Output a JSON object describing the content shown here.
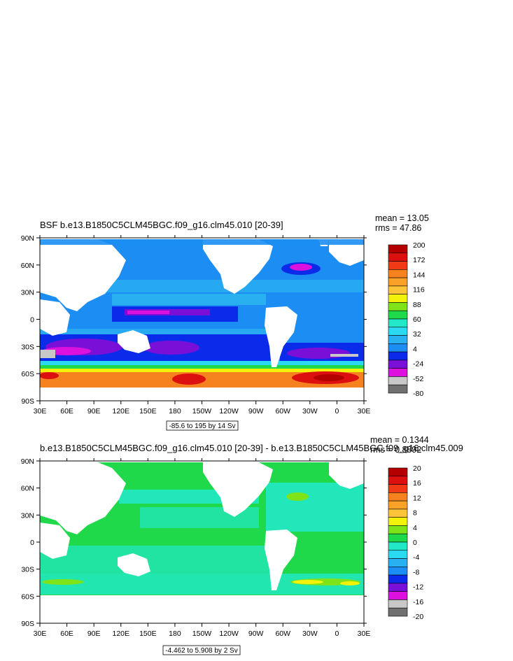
{
  "chart_data": [
    {
      "type": "heatmap",
      "title": "BSF b.e13.B1850C5CLM45BGC.f09_g16.clm45.010 [20-39]",
      "mean_text": "mean = 13.05",
      "rms_text": "rms = 47.86",
      "range_text": "-85.6 to 195 by 14 Sv",
      "x_ticks": [
        "30E",
        "60E",
        "90E",
        "120E",
        "150E",
        "180",
        "150W",
        "120W",
        "90W",
        "60W",
        "30W",
        "0",
        "30E"
      ],
      "y_ticks": [
        "90N",
        "60N",
        "30N",
        "0",
        "30S",
        "60S",
        "90S"
      ],
      "colorbar_labels": [
        "200",
        "172",
        "144",
        "116",
        "88",
        "60",
        "32",
        "4",
        "-24",
        "-52",
        "-80"
      ],
      "colorbar_colors": [
        "#b40000",
        "#dd1010",
        "#f03a16",
        "#f5821f",
        "#f9a128",
        "#fcc43a",
        "#f2f20a",
        "#7fe31a",
        "#1fd94a",
        "#22e8c8",
        "#2bd9f3",
        "#29b0f0",
        "#1c8ef3",
        "#0a2bea",
        "#7a10d8",
        "#dd11dd",
        "#c8c8c8",
        "#707070"
      ],
      "vmin": -80,
      "vmax": 200
    },
    {
      "type": "heatmap",
      "title": "b.e13.B1850C5CLM45BGC.f09_g16.clm45.010 [20-39] - b.e13.B1850C5CLM45BGC.f09_g16.clm45.009",
      "mean_text": "mean = 0.1344",
      "rms_text": "rms = 0.8892",
      "range_text": "-4.462 to 5.908 by 2 Sv",
      "x_ticks": [
        "30E",
        "60E",
        "90E",
        "120E",
        "150E",
        "180",
        "150W",
        "120W",
        "90W",
        "60W",
        "30W",
        "0",
        "30E"
      ],
      "y_ticks": [
        "90N",
        "60N",
        "30N",
        "0",
        "30S",
        "60S",
        "90S"
      ],
      "colorbar_labels": [
        "20",
        "16",
        "12",
        "8",
        "4",
        "0",
        "-4",
        "-8",
        "-12",
        "-16",
        "-20"
      ],
      "colorbar_colors": [
        "#b40000",
        "#dd1010",
        "#f03a16",
        "#f5821f",
        "#f9a128",
        "#fcc43a",
        "#f2f20a",
        "#7fe31a",
        "#1fd94a",
        "#22e8c8",
        "#2bd9f3",
        "#29b0f0",
        "#1c8ef3",
        "#0a2bea",
        "#7a10d8",
        "#dd11dd",
        "#c8c8c8",
        "#707070"
      ],
      "vmin": -20,
      "vmax": 20
    }
  ]
}
